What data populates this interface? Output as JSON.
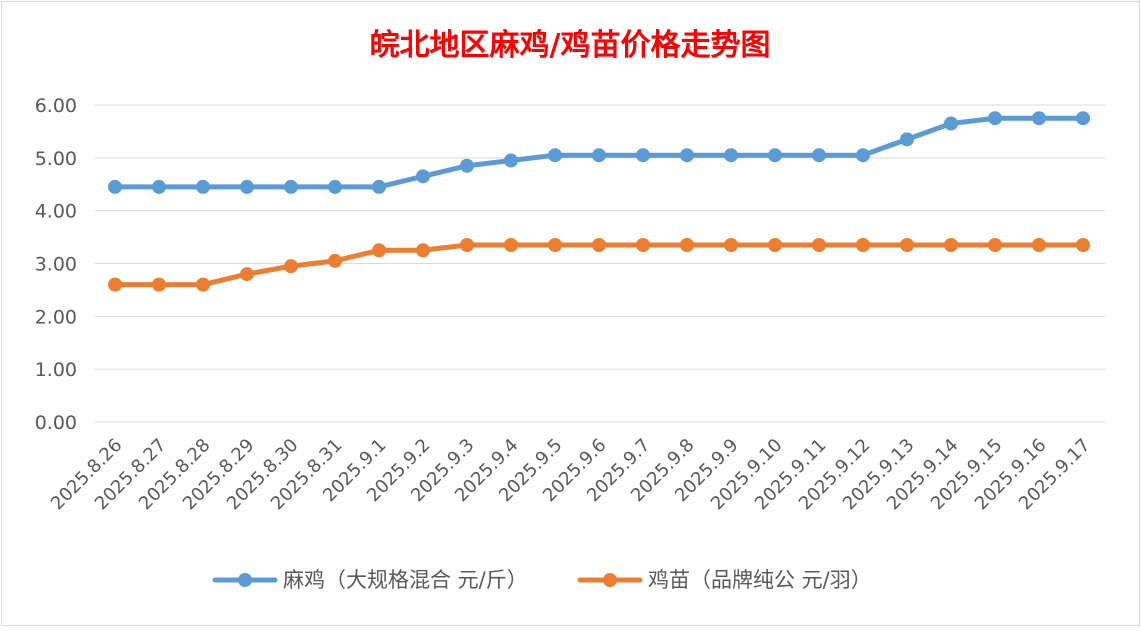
{
  "chart_data": {
    "type": "line",
    "title": "皖北地区麻鸡/鸡苗价格走势图",
    "categories": [
      "2025.8.26",
      "2025.8.27",
      "2025.8.28",
      "2025.8.29",
      "2025.8.30",
      "2025.8.31",
      "2025.9.1",
      "2025.9.2",
      "2025.9.3",
      "2025.9.4",
      "2025.9.5",
      "2025.9.6",
      "2025.9.7",
      "2025.9.8",
      "2025.9.9",
      "2025.9.10",
      "2025.9.11",
      "2025.9.12",
      "2025.9.13",
      "2025.9.14",
      "2025.9.15",
      "2025.9.16",
      "2025.9.17"
    ],
    "series": [
      {
        "name": "麻鸡（大规格混合 元/斤）",
        "color": "#5b9bd5",
        "values": [
          4.45,
          4.45,
          4.45,
          4.45,
          4.45,
          4.45,
          4.45,
          4.65,
          4.85,
          4.95,
          5.05,
          5.05,
          5.05,
          5.05,
          5.05,
          5.05,
          5.05,
          5.05,
          5.35,
          5.65,
          5.75,
          5.75,
          5.75
        ]
      },
      {
        "name": "鸡苗（品牌纯公 元/羽）",
        "color": "#ed7d31",
        "values": [
          2.6,
          2.6,
          2.6,
          2.8,
          2.95,
          3.05,
          3.25,
          3.25,
          3.35,
          3.35,
          3.35,
          3.35,
          3.35,
          3.35,
          3.35,
          3.35,
          3.35,
          3.35,
          3.35,
          3.35,
          3.35,
          3.35,
          3.35
        ]
      }
    ],
    "ylim": [
      0,
      6
    ],
    "yticks": [
      "0.00",
      "1.00",
      "2.00",
      "3.00",
      "4.00",
      "5.00",
      "6.00"
    ],
    "grid": true,
    "legend": "bottom",
    "title_color": "#ff0000"
  }
}
